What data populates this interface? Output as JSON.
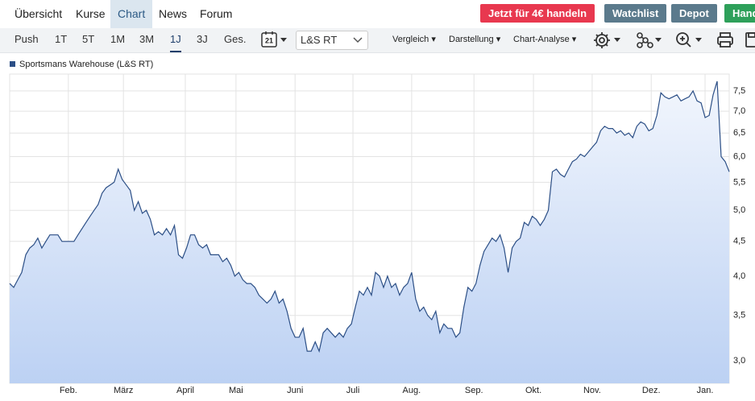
{
  "nav": {
    "tabs": [
      "Übersicht",
      "Kurse",
      "Chart",
      "News",
      "Forum"
    ],
    "buttons": [
      "Jetzt für 4€ handeln",
      "Watchlist",
      "Depot",
      "Handeln"
    ]
  },
  "toolbar": {
    "periods": [
      "Push",
      "1T",
      "5T",
      "1M",
      "3M",
      "1J",
      "3J",
      "Ges."
    ],
    "calendar": "21",
    "exchange": "L&S RT",
    "menus": [
      "Vergleich",
      "Darstellung",
      "Chart-Analyse"
    ]
  },
  "chart_data": {
    "type": "line",
    "log_scale": true,
    "grid": true,
    "series": [
      {
        "name": "Sportsmans Warehouse (L&S RT)",
        "color": "#2c4f86",
        "values": [
          3.9,
          3.85,
          3.95,
          4.05,
          4.3,
          4.4,
          4.45,
          4.55,
          4.4,
          4.5,
          4.6,
          4.6,
          4.6,
          4.5,
          4.5,
          4.5,
          4.5,
          4.6,
          4.7,
          4.8,
          4.9,
          5.0,
          5.1,
          5.3,
          5.4,
          5.45,
          5.5,
          5.75,
          5.55,
          5.45,
          5.35,
          5.0,
          5.15,
          4.95,
          5.0,
          4.85,
          4.6,
          4.65,
          4.6,
          4.7,
          4.6,
          4.75,
          4.3,
          4.25,
          4.4,
          4.6,
          4.6,
          4.45,
          4.4,
          4.45,
          4.3,
          4.3,
          4.3,
          4.2,
          4.25,
          4.15,
          4.0,
          4.05,
          3.95,
          3.9,
          3.9,
          3.85,
          3.75,
          3.7,
          3.65,
          3.7,
          3.8,
          3.65,
          3.7,
          3.55,
          3.35,
          3.25,
          3.25,
          3.35,
          3.1,
          3.1,
          3.2,
          3.1,
          3.3,
          3.35,
          3.3,
          3.25,
          3.3,
          3.25,
          3.35,
          3.4,
          3.6,
          3.8,
          3.75,
          3.85,
          3.75,
          4.05,
          4.0,
          3.85,
          4.0,
          3.85,
          3.9,
          3.75,
          3.85,
          3.9,
          4.05,
          3.7,
          3.55,
          3.6,
          3.5,
          3.45,
          3.55,
          3.3,
          3.4,
          3.35,
          3.35,
          3.25,
          3.3,
          3.6,
          3.85,
          3.8,
          3.9,
          4.15,
          4.35,
          4.45,
          4.55,
          4.5,
          4.6,
          4.4,
          4.05,
          4.4,
          4.5,
          4.55,
          4.8,
          4.75,
          4.9,
          4.85,
          4.75,
          4.85,
          5.0,
          5.7,
          5.75,
          5.65,
          5.6,
          5.75,
          5.9,
          5.95,
          6.05,
          6.0,
          6.1,
          6.2,
          6.3,
          6.55,
          6.65,
          6.6,
          6.6,
          6.5,
          6.55,
          6.45,
          6.5,
          6.4,
          6.65,
          6.75,
          6.7,
          6.55,
          6.6,
          6.9,
          7.45,
          7.35,
          7.3,
          7.35,
          7.4,
          7.25,
          7.3,
          7.35,
          7.5,
          7.25,
          7.2,
          6.85,
          6.9,
          7.4,
          7.75,
          6.0,
          5.9,
          5.7
        ]
      }
    ],
    "xlim": [
      0,
      179
    ],
    "xticks": [
      {
        "value": 14.6,
        "label": "Feb."
      },
      {
        "value": 28.3,
        "label": "März"
      },
      {
        "value": 43.7,
        "label": "April"
      },
      {
        "value": 56.3,
        "label": "Mai"
      },
      {
        "value": 71.0,
        "label": "Juni"
      },
      {
        "value": 85.4,
        "label": "Juli"
      },
      {
        "value": 100.0,
        "label": "Aug."
      },
      {
        "value": 115.5,
        "label": "Sep."
      },
      {
        "value": 130.3,
        "label": "Okt."
      },
      {
        "value": 144.9,
        "label": "Nov."
      },
      {
        "value": 159.6,
        "label": "Dez."
      },
      {
        "value": 173.0,
        "label": "Jan."
      }
    ],
    "ylim": [
      2.78,
      7.94
    ],
    "yticks": [
      {
        "value": 3.0,
        "label": "3,0"
      },
      {
        "value": 3.5,
        "label": "3,5"
      },
      {
        "value": 4.0,
        "label": "4,0"
      },
      {
        "value": 4.5,
        "label": "4,5"
      },
      {
        "value": 5.0,
        "label": "5,0"
      },
      {
        "value": 5.5,
        "label": "5,5"
      },
      {
        "value": 6.0,
        "label": "6,0"
      },
      {
        "value": 6.5,
        "label": "6,5"
      },
      {
        "value": 7.0,
        "label": "7,0"
      },
      {
        "value": 7.5,
        "label": "7,5"
      }
    ]
  }
}
